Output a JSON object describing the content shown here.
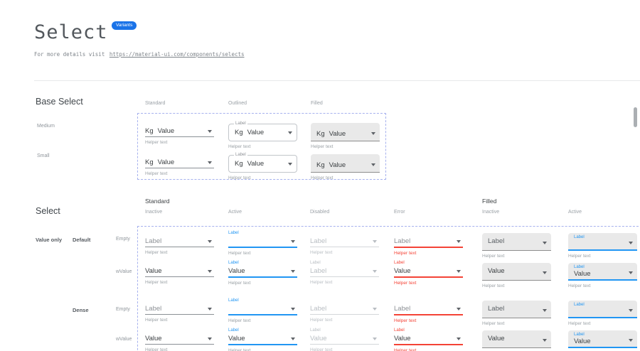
{
  "header": {
    "title": "Select",
    "badge": "Variants",
    "subtitle_prefix": "For more details visit ",
    "subtitle_link": "https://material-ui.com/components/selects"
  },
  "texts": {
    "label": "Label",
    "value": "Value",
    "adornment": "Kg",
    "helper": "Helper text"
  },
  "icons": {
    "dropdown": "dropdown-arrow"
  },
  "colors": {
    "accent_blue": "#2196f3",
    "error_red": "#f44336",
    "badge_blue": "#1a73e8",
    "filled_bg": "#e9e9e9",
    "dashed_border": "#a6b1ee",
    "underline_gray": "#8a9095"
  },
  "base_select": {
    "heading": "Base Select",
    "columns": [
      {
        "label": "Standard",
        "variant": "standard"
      },
      {
        "label": "Outlined",
        "variant": "outlined"
      },
      {
        "label": "Filled",
        "variant": "filled"
      }
    ],
    "rows": [
      {
        "label": "Medium",
        "size": "medium"
      },
      {
        "label": "Small",
        "size": "small"
      }
    ]
  },
  "select_section": {
    "heading": "Select",
    "category": "Value only",
    "groups": [
      {
        "label": "Standard"
      },
      {
        "label": "Filled"
      }
    ],
    "columns": [
      {
        "label": "Inactive",
        "variant": "standard",
        "state": "inactive"
      },
      {
        "label": "Active",
        "variant": "standard",
        "state": "active"
      },
      {
        "label": "Disabled",
        "variant": "standard",
        "state": "disabled"
      },
      {
        "label": "Error",
        "variant": "standard",
        "state": "error"
      },
      {
        "label": "Inactive",
        "variant": "filled",
        "state": "inactive"
      },
      {
        "label": "Active",
        "variant": "filled",
        "state": "active"
      }
    ],
    "rows": [
      {
        "subgroup": "Default",
        "variant_label": "Empty",
        "has_value": false
      },
      {
        "subgroup": "Default",
        "variant_label": "wValue",
        "has_value": true,
        "disabled_value": "Label"
      },
      {
        "subgroup": "Dense",
        "variant_label": "Empty",
        "has_value": false
      },
      {
        "subgroup": "Dense",
        "variant_label": "wValue",
        "has_value": true,
        "disabled_value": "Value"
      }
    ]
  }
}
